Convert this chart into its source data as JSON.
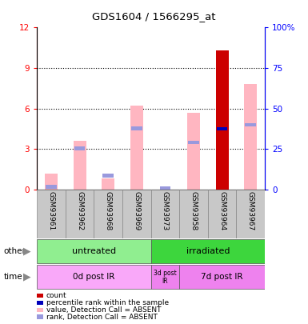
{
  "title": "GDS1604 / 1566295_at",
  "samples": [
    "GSM93961",
    "GSM93962",
    "GSM93968",
    "GSM93969",
    "GSM93973",
    "GSM93958",
    "GSM93964",
    "GSM93967"
  ],
  "count_values": [
    0,
    0,
    0,
    0,
    0,
    0,
    10.3,
    0
  ],
  "value_absent": [
    1.2,
    3.6,
    0.8,
    6.2,
    0.0,
    5.7,
    4.5,
    7.8
  ],
  "rank_absent_marker": [
    0.2,
    3.05,
    1.05,
    4.55,
    0.12,
    3.5,
    4.5,
    4.8
  ],
  "percentile_rank_marker": [
    0,
    0,
    0,
    0,
    0,
    0,
    4.5,
    0
  ],
  "ylim_left": [
    0,
    12
  ],
  "ylim_right": [
    0,
    100
  ],
  "yticks_left": [
    0,
    3,
    6,
    9,
    12
  ],
  "yticks_right": [
    0,
    25,
    50,
    75,
    100
  ],
  "ytick_labels_right": [
    "0",
    "25",
    "50",
    "75",
    "100%"
  ],
  "group_other": [
    {
      "label": "untreated",
      "start": 0,
      "end": 4,
      "color": "#90EE90"
    },
    {
      "label": "irradiated",
      "start": 4,
      "end": 8,
      "color": "#3DD63D"
    }
  ],
  "group_time": [
    {
      "label": "0d post IR",
      "start": 0,
      "end": 4,
      "color": "#F9A8F9",
      "text_color": "black"
    },
    {
      "label": "3d post\nIR",
      "start": 4,
      "end": 5,
      "color": "#EE82EE",
      "text_color": "black"
    },
    {
      "label": "7d post IR",
      "start": 5,
      "end": 8,
      "color": "#EE82EE",
      "text_color": "black"
    }
  ],
  "bar_width": 0.45,
  "color_count": "#CC0000",
  "color_percentile": "#0000BB",
  "color_value_absent": "#FFB6C1",
  "color_rank_absent": "#9999DD",
  "sample_bg": "#C8C8C8",
  "legend_items": [
    {
      "color": "#CC0000",
      "label": "count"
    },
    {
      "color": "#0000BB",
      "label": "percentile rank within the sample"
    },
    {
      "color": "#FFB6C1",
      "label": "value, Detection Call = ABSENT"
    },
    {
      "color": "#9999DD",
      "label": "rank, Detection Call = ABSENT"
    }
  ]
}
